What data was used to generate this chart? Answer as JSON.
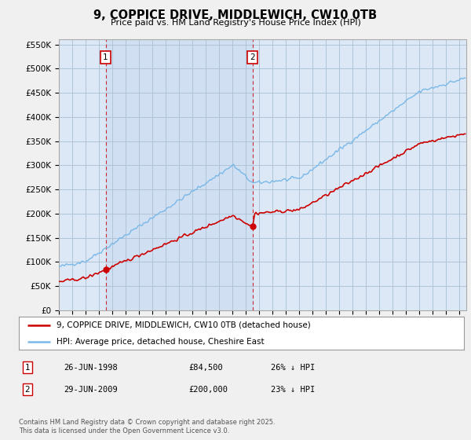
{
  "title": "9, COPPICE DRIVE, MIDDLEWICH, CW10 0TB",
  "subtitle": "Price paid vs. HM Land Registry's House Price Index (HPI)",
  "hpi_label": "HPI: Average price, detached house, Cheshire East",
  "house_label": "9, COPPICE DRIVE, MIDDLEWICH, CW10 0TB (detached house)",
  "hpi_color": "#7ab8e8",
  "house_color": "#cc0000",
  "bg_color": "#f0f0f0",
  "plot_bg": "#dce8f5",
  "grid_color": "#b0c4d8",
  "ylim": [
    0,
    560000
  ],
  "yticks": [
    0,
    50000,
    100000,
    150000,
    200000,
    250000,
    300000,
    350000,
    400000,
    450000,
    500000,
    550000
  ],
  "ytick_labels": [
    "£0",
    "£50K",
    "£100K",
    "£150K",
    "£200K",
    "£250K",
    "£300K",
    "£350K",
    "£400K",
    "£450K",
    "£500K",
    "£550K"
  ],
  "sale1": {
    "date": "26-JUN-1998",
    "price": 84500,
    "hpi_pct": "26% ↓ HPI",
    "label": "1",
    "x_year": 1998.5
  },
  "sale2": {
    "date": "29-JUN-2009",
    "price": 200000,
    "hpi_pct": "23% ↓ HPI",
    "label": "2",
    "x_year": 2009.5
  },
  "footer": "Contains HM Land Registry data © Crown copyright and database right 2025.\nThis data is licensed under the Open Government Licence v3.0.",
  "xmin": 1995,
  "xmax": 2025.5
}
